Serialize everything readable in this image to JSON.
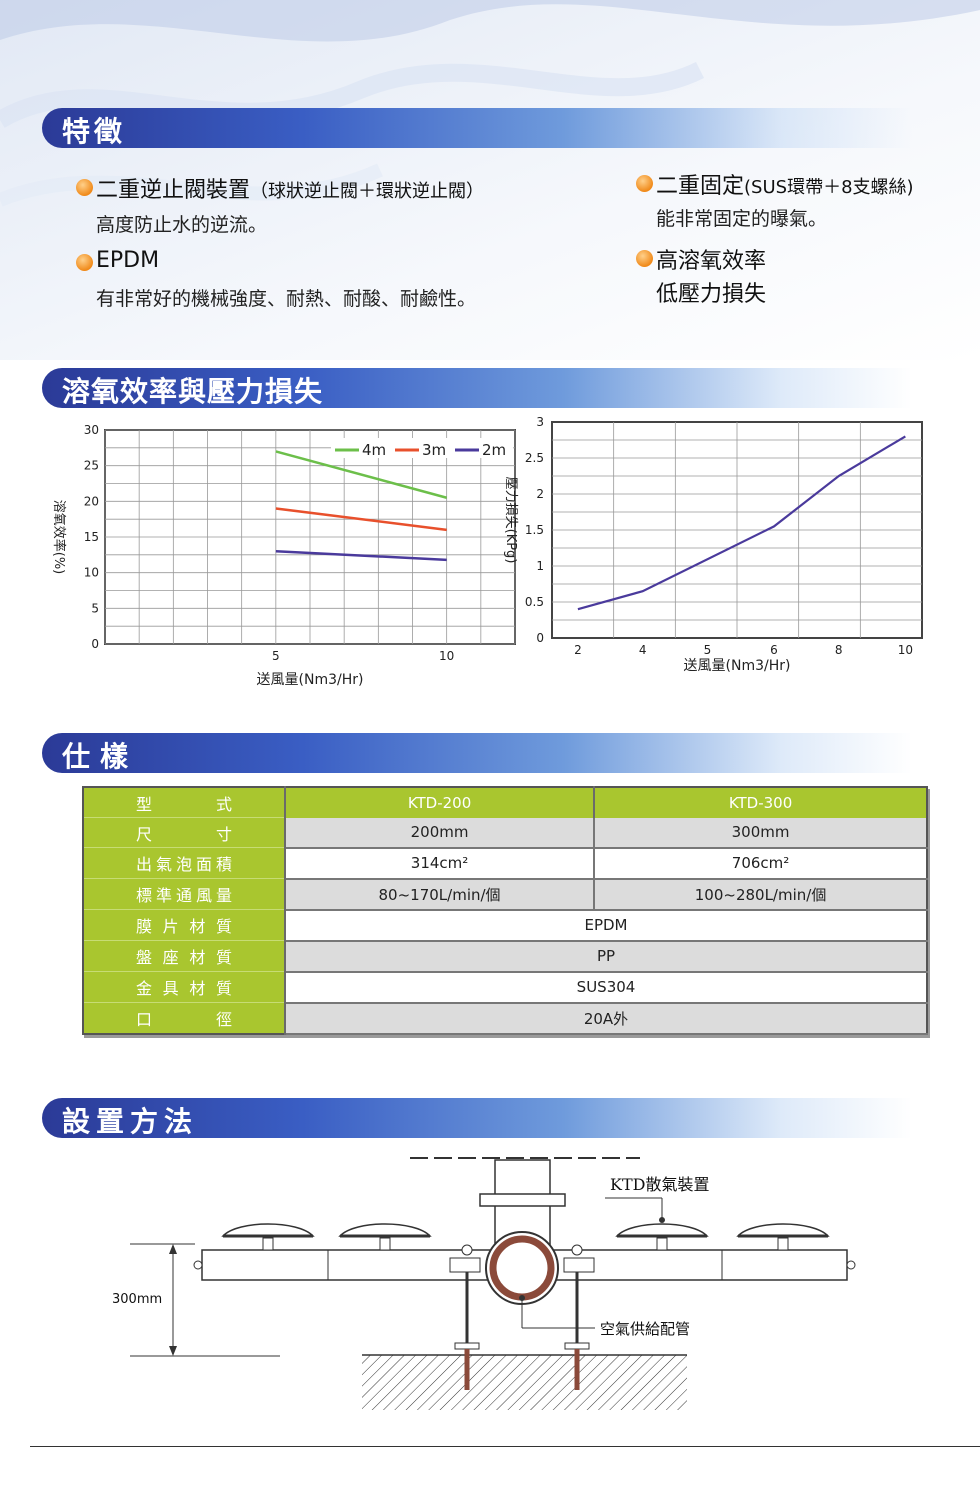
{
  "sections": {
    "features": "特徵",
    "performance": "溶氧效率與壓力損失",
    "specs": "仕樣",
    "installation": "設置方法"
  },
  "features": {
    "left": [
      {
        "title": "二重逆止閥裝置",
        "note": "（球狀逆止閥＋環狀逆止閥）",
        "desc": "高度防止水的逆流。"
      },
      {
        "title": "EPDM",
        "note": "",
        "desc": "有非常好的機械強度、耐熱、耐酸、耐鹼性。"
      }
    ],
    "right": [
      {
        "title": "二重固定",
        "note": "(SUS環帶＋8支螺絲)",
        "desc": "能非常固定的曝氣。"
      },
      {
        "title": "高溶氧效率",
        "note": "",
        "desc": "低壓力損失"
      }
    ]
  },
  "chart_data": [
    {
      "type": "line",
      "xlabel": "送風量(Nm3/Hr)",
      "ylabel": "溶氧效率(%)",
      "x": [
        5,
        10
      ],
      "xticks": [
        5,
        10
      ],
      "yticks": [
        0,
        5,
        10,
        15,
        20,
        25,
        30
      ],
      "ylim": [
        0,
        30
      ],
      "xlim": [
        0,
        12
      ],
      "grid": true,
      "legend_position": "top-right",
      "series": [
        {
          "name": "4m",
          "color": "#6cbf4a",
          "values": [
            27,
            20.5
          ]
        },
        {
          "name": "3m",
          "color": "#e8502c",
          "values": [
            19,
            16
          ]
        },
        {
          "name": "2m",
          "color": "#4a3a9c",
          "values": [
            13,
            11.8
          ]
        }
      ]
    },
    {
      "type": "line",
      "xlabel": "送風量(Nm3/Hr)",
      "ylabel": "壓力損失(KPg)",
      "xticks": [
        "2",
        "4",
        "5",
        "6",
        "8",
        "10"
      ],
      "yticks": [
        "0",
        "0.5",
        "1",
        "1.5",
        "2",
        "2.5",
        "3"
      ],
      "ylim": [
        0,
        3
      ],
      "grid": true,
      "series": [
        {
          "color": "#4a3a9c",
          "x": [
            2,
            4,
            6,
            8,
            10
          ],
          "values": [
            0.4,
            0.65,
            1.55,
            2.25,
            2.8
          ]
        }
      ]
    }
  ],
  "spec_table": {
    "columns": [
      "型式",
      "KTD-200",
      "KTD-300"
    ],
    "rows": [
      {
        "label": [
          "尺",
          "寸"
        ],
        "values": [
          "200mm",
          "300mm"
        ]
      },
      {
        "label": [
          "出氣泡面積"
        ],
        "values": [
          "314cm²",
          "706cm²"
        ]
      },
      {
        "label": [
          "標準通風量"
        ],
        "values": [
          "80~170L/min/個",
          "100~280L/min/個"
        ]
      },
      {
        "label": [
          "膜片材質"
        ],
        "values": [
          "EPDM"
        ]
      },
      {
        "label": [
          "盤座材質"
        ],
        "values": [
          "PP"
        ]
      },
      {
        "label": [
          "金具材質"
        ],
        "values": [
          "SUS304"
        ]
      },
      {
        "label": [
          "口",
          "徑"
        ],
        "values": [
          "20A外"
        ]
      }
    ]
  },
  "installation": {
    "device_label": "KTD散氣裝置",
    "pipe_label": "空氣供給配管",
    "height_label": "300mm"
  },
  "colors": {
    "banner": "#2b3a97",
    "table_green": "#a9c62f",
    "bullet": "#f08a1a"
  }
}
